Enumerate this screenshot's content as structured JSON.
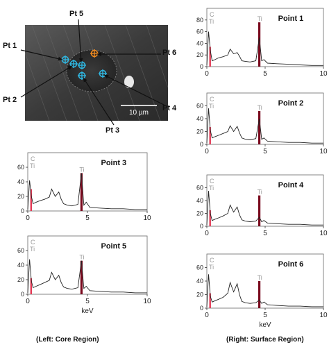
{
  "micrograph": {
    "scale_bar_label": "10 µm",
    "markers": [
      {
        "label": "Pt 1",
        "color": "#2fb6e0"
      },
      {
        "label": "Pt 2",
        "color": "#2fb6e0"
      },
      {
        "label": "Pt 3",
        "color": "#2fb6e0"
      },
      {
        "label": "Pt 4",
        "color": "#2fb6e0"
      },
      {
        "label": "Pt 5",
        "color": "#2fb6e0"
      },
      {
        "label": "Pt 6",
        "color": "#f08a1e"
      }
    ]
  },
  "captions": {
    "left": "(Left: Core Region)",
    "right": "(Right: Surface Region)"
  },
  "colors": {
    "ti_line": "#7a0a1e",
    "c_line": "#e23a55",
    "spectrum": "#222222",
    "element_label": "#9a9a9a"
  },
  "chart_data": [
    {
      "type": "line",
      "title": "Point 1",
      "xlabel": "",
      "ylabel": "",
      "xlim": [
        0,
        10
      ],
      "ylim": [
        0,
        100
      ],
      "xticks": [
        0,
        5,
        10
      ],
      "yticks": [
        0,
        20,
        40,
        60,
        80
      ],
      "element_labels": [
        "C",
        "Ti",
        "Ti"
      ],
      "peak_lines": [
        {
          "element": "C",
          "x": 0.28,
          "y": 34
        },
        {
          "element": "Ti",
          "x": 4.5,
          "y": 76
        }
      ],
      "x": [
        0,
        0.15,
        0.3,
        0.45,
        0.7,
        1.0,
        1.4,
        1.8,
        2.0,
        2.3,
        2.6,
        2.8,
        3.0,
        3.3,
        3.7,
        4.2,
        4.5,
        4.7,
        4.9,
        5.2,
        6,
        7,
        8,
        9,
        10
      ],
      "y": [
        2,
        60,
        28,
        10,
        12,
        15,
        17,
        20,
        30,
        22,
        24,
        18,
        10,
        9,
        8,
        10,
        50,
        10,
        12,
        6,
        5,
        4,
        3,
        2,
        2
      ]
    },
    {
      "type": "line",
      "title": "Point 2",
      "xlabel": "",
      "ylabel": "",
      "xlim": [
        0,
        10
      ],
      "ylim": [
        0,
        80
      ],
      "xticks": [
        0,
        5,
        10
      ],
      "yticks": [
        0,
        20,
        40,
        60
      ],
      "element_labels": [
        "C",
        "Ti",
        "Ti"
      ],
      "peak_lines": [
        {
          "element": "C",
          "x": 0.28,
          "y": 27
        },
        {
          "element": "Ti",
          "x": 4.5,
          "y": 52
        }
      ],
      "x": [
        0,
        0.15,
        0.3,
        0.45,
        0.7,
        1.0,
        1.4,
        1.8,
        2.0,
        2.3,
        2.6,
        2.8,
        3.0,
        3.3,
        3.7,
        4.2,
        4.5,
        4.7,
        4.9,
        5.2,
        6,
        7,
        8,
        9,
        10
      ],
      "y": [
        2,
        56,
        22,
        10,
        12,
        14,
        17,
        20,
        29,
        20,
        28,
        18,
        10,
        8,
        7,
        9,
        40,
        8,
        10,
        5,
        4,
        3,
        3,
        2,
        2
      ]
    },
    {
      "type": "line",
      "title": "Point 3",
      "xlabel": "",
      "ylabel": "",
      "xlim": [
        0,
        10
      ],
      "ylim": [
        0,
        80
      ],
      "xticks": [
        0,
        5,
        10
      ],
      "yticks": [
        0,
        20,
        40,
        60
      ],
      "element_labels": [
        "C",
        "Ti",
        "Ti"
      ],
      "peak_lines": [
        {
          "element": "C",
          "x": 0.28,
          "y": 30
        },
        {
          "element": "Ti",
          "x": 4.5,
          "y": 52
        }
      ],
      "x": [
        0,
        0.15,
        0.3,
        0.45,
        0.7,
        1.0,
        1.4,
        1.8,
        2.0,
        2.3,
        2.6,
        2.8,
        3.0,
        3.3,
        3.7,
        4.2,
        4.5,
        4.7,
        4.9,
        5.2,
        6,
        7,
        8,
        9,
        10
      ],
      "y": [
        2,
        42,
        20,
        10,
        12,
        14,
        16,
        19,
        30,
        20,
        26,
        16,
        10,
        8,
        7,
        9,
        52,
        8,
        12,
        5,
        4,
        3,
        3,
        2,
        2
      ]
    },
    {
      "type": "line",
      "title": "Point 4",
      "xlabel": "",
      "ylabel": "",
      "xlim": [
        0,
        10
      ],
      "ylim": [
        0,
        80
      ],
      "xticks": [
        0,
        5,
        10
      ],
      "yticks": [
        0,
        20,
        40,
        60
      ],
      "element_labels": [
        "C",
        "Ti",
        "Ti"
      ],
      "peak_lines": [
        {
          "element": "C",
          "x": 0.28,
          "y": 25
        },
        {
          "element": "Ti",
          "x": 4.5,
          "y": 48
        }
      ],
      "x": [
        0,
        0.15,
        0.3,
        0.45,
        0.7,
        1.0,
        1.4,
        1.8,
        2.0,
        2.3,
        2.6,
        2.8,
        3.0,
        3.3,
        3.7,
        4.2,
        4.5,
        4.7,
        4.9,
        5.2,
        6,
        7,
        8,
        9,
        10
      ],
      "y": [
        2,
        55,
        20,
        9,
        11,
        13,
        16,
        20,
        33,
        22,
        30,
        18,
        10,
        8,
        7,
        8,
        14,
        7,
        9,
        5,
        4,
        3,
        3,
        2,
        2
      ]
    },
    {
      "type": "line",
      "title": "Point 5",
      "xlabel": "keV",
      "ylabel": "",
      "xlim": [
        0,
        10
      ],
      "ylim": [
        0,
        80
      ],
      "xticks": [
        0,
        5,
        10
      ],
      "yticks": [
        0,
        20,
        40,
        60
      ],
      "element_labels": [
        "C",
        "Ti",
        "Ti"
      ],
      "peak_lines": [
        {
          "element": "C",
          "x": 0.28,
          "y": 22
        },
        {
          "element": "Ti",
          "x": 4.5,
          "y": 46
        }
      ],
      "x": [
        0,
        0.15,
        0.3,
        0.45,
        0.7,
        1.0,
        1.4,
        1.8,
        2.0,
        2.3,
        2.6,
        2.8,
        3.0,
        3.3,
        3.7,
        4.2,
        4.5,
        4.7,
        4.9,
        5.2,
        6,
        7,
        8,
        9,
        10
      ],
      "y": [
        2,
        48,
        18,
        9,
        11,
        13,
        16,
        19,
        30,
        20,
        26,
        16,
        10,
        8,
        7,
        9,
        46,
        8,
        11,
        5,
        4,
        3,
        3,
        2,
        2
      ]
    },
    {
      "type": "line",
      "title": "Point 6",
      "xlabel": "keV",
      "ylabel": "",
      "xlim": [
        0,
        10
      ],
      "ylim": [
        0,
        80
      ],
      "xticks": [
        0,
        5,
        10
      ],
      "yticks": [
        0,
        20,
        40,
        60
      ],
      "element_labels": [
        "C",
        "Ti",
        "Ti"
      ],
      "peak_lines": [
        {
          "element": "C",
          "x": 0.28,
          "y": 22
        },
        {
          "element": "Ti",
          "x": 4.5,
          "y": 40
        }
      ],
      "x": [
        0,
        0.15,
        0.3,
        0.45,
        0.7,
        1.0,
        1.4,
        1.8,
        2.0,
        2.3,
        2.6,
        2.8,
        3.0,
        3.3,
        3.7,
        4.2,
        4.5,
        4.7,
        4.9,
        5.2,
        6,
        7,
        8,
        9,
        10
      ],
      "y": [
        2,
        50,
        18,
        9,
        11,
        13,
        16,
        22,
        38,
        24,
        36,
        20,
        10,
        8,
        7,
        8,
        12,
        7,
        9,
        5,
        4,
        3,
        3,
        2,
        2
      ]
    }
  ]
}
